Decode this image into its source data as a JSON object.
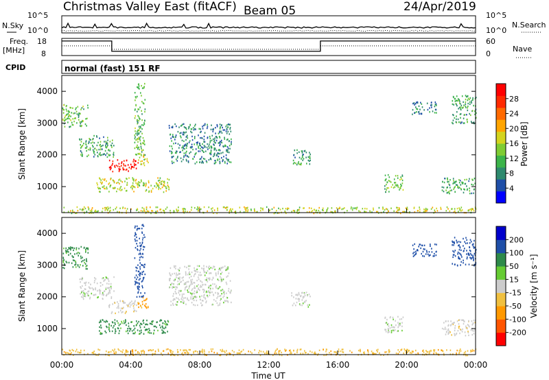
{
  "header": {
    "station": "Christmas Valley East (fitACF)",
    "beam": "Beam 05",
    "date": "24/Apr/2019"
  },
  "panels": {
    "nsky_label": "N.Sky",
    "nsearch_label": "N.Search",
    "nsky_ticks": [
      "10^5",
      "10^0"
    ],
    "nsearch_ticks": [
      "10^5",
      "10^0"
    ],
    "freq_label_1": "Freq.",
    "freq_label_2": "[MHz]",
    "freq_ticks": [
      "18",
      "8"
    ],
    "nave_label": "Nave",
    "nave_ticks": [
      "60",
      "0"
    ],
    "cpid_label": "CPID",
    "cpid_text": "normal (fast) 151 RF"
  },
  "power_panel": {
    "ylabel": "Slant Range [km]",
    "yticks": [
      "4000",
      "3000",
      "2000",
      "1000"
    ],
    "colorbar_label": "Power [dB]",
    "colorbar_ticks": [
      "28",
      "24",
      "20",
      "16",
      "12",
      "8",
      "4"
    ],
    "colors": [
      "#0000ff",
      "#1f4fa8",
      "#2e8a6e",
      "#3cb44a",
      "#7fcc33",
      "#d4d41e",
      "#ffa500",
      "#ff6a00",
      "#ff2a00",
      "#ff0000"
    ]
  },
  "velocity_panel": {
    "ylabel": "Slant Range [km]",
    "yticks": [
      "4000",
      "3000",
      "2000",
      "1000"
    ],
    "colorbar_label": "Velocity [m s⁻¹]",
    "colorbar_ticks": [
      "200",
      "100",
      "50",
      "15",
      "-15",
      "-50",
      "-100",
      "-200"
    ],
    "colors": [
      "#0000cc",
      "#1f4fa8",
      "#2e8a4a",
      "#66cc33",
      "#cccccc",
      "#f0c040",
      "#ff9900",
      "#ff5500",
      "#ff0000"
    ]
  },
  "xaxis": {
    "ticks": [
      "00:00",
      "04:00",
      "08:00",
      "12:00",
      "16:00",
      "20:00",
      "00:00"
    ],
    "label": "Time UT"
  },
  "chart_data": {
    "type": "heatmap",
    "x_range_hours": [
      0,
      24
    ],
    "y_range_km": [
      180,
      4500
    ],
    "freq_range_mhz": [
      8,
      18
    ],
    "nave_range": [
      0,
      60
    ],
    "freq_steps": [
      {
        "start_h": 0,
        "end_h": 2.9,
        "mhz": 16.5
      },
      {
        "start_h": 2.9,
        "end_h": 15.0,
        "mhz": 10.5
      },
      {
        "start_h": 15.0,
        "end_h": 24,
        "mhz": 16.5
      }
    ],
    "echo_regions": [
      {
        "t0": 0.0,
        "t1": 1.5,
        "r0": 2900,
        "r1": 3600,
        "power": 10,
        "velocity": 40
      },
      {
        "t0": 1.0,
        "t1": 3.0,
        "r0": 1950,
        "r1": 2650,
        "power": 8,
        "velocity": 5
      },
      {
        "t0": 2.7,
        "t1": 4.4,
        "r0": 1500,
        "r1": 1900,
        "power": 26,
        "velocity": -5
      },
      {
        "t0": 4.4,
        "t1": 5.0,
        "r0": 1650,
        "r1": 2050,
        "power": 14,
        "velocity": -60
      },
      {
        "t0": 2.0,
        "t1": 6.2,
        "r0": 850,
        "r1": 1300,
        "power": 14,
        "velocity": 40
      },
      {
        "t0": 4.2,
        "t1": 4.8,
        "r0": 2000,
        "r1": 4300,
        "power": 10,
        "velocity": 120
      },
      {
        "t0": 6.2,
        "t1": 9.8,
        "r0": 1750,
        "r1": 3000,
        "power": 6,
        "velocity": 5
      },
      {
        "t0": 13.3,
        "t1": 14.4,
        "r0": 1700,
        "r1": 2200,
        "power": 8,
        "velocity": 5
      },
      {
        "t0": 18.7,
        "t1": 19.8,
        "r0": 850,
        "r1": 1400,
        "power": 10,
        "velocity": 5
      },
      {
        "t0": 20.3,
        "t1": 21.7,
        "r0": 3300,
        "r1": 3700,
        "power": 6,
        "velocity": 120
      },
      {
        "t0": 22.6,
        "t1": 24.0,
        "r0": 3000,
        "r1": 3900,
        "power": 8,
        "velocity": 120
      },
      {
        "t0": 22.0,
        "t1": 24.0,
        "r0": 800,
        "r1": 1300,
        "power": 8,
        "velocity": -5
      },
      {
        "t0": 0.0,
        "t1": 24.0,
        "r0": 180,
        "r1": 380,
        "power": 14,
        "velocity": -40
      }
    ]
  }
}
